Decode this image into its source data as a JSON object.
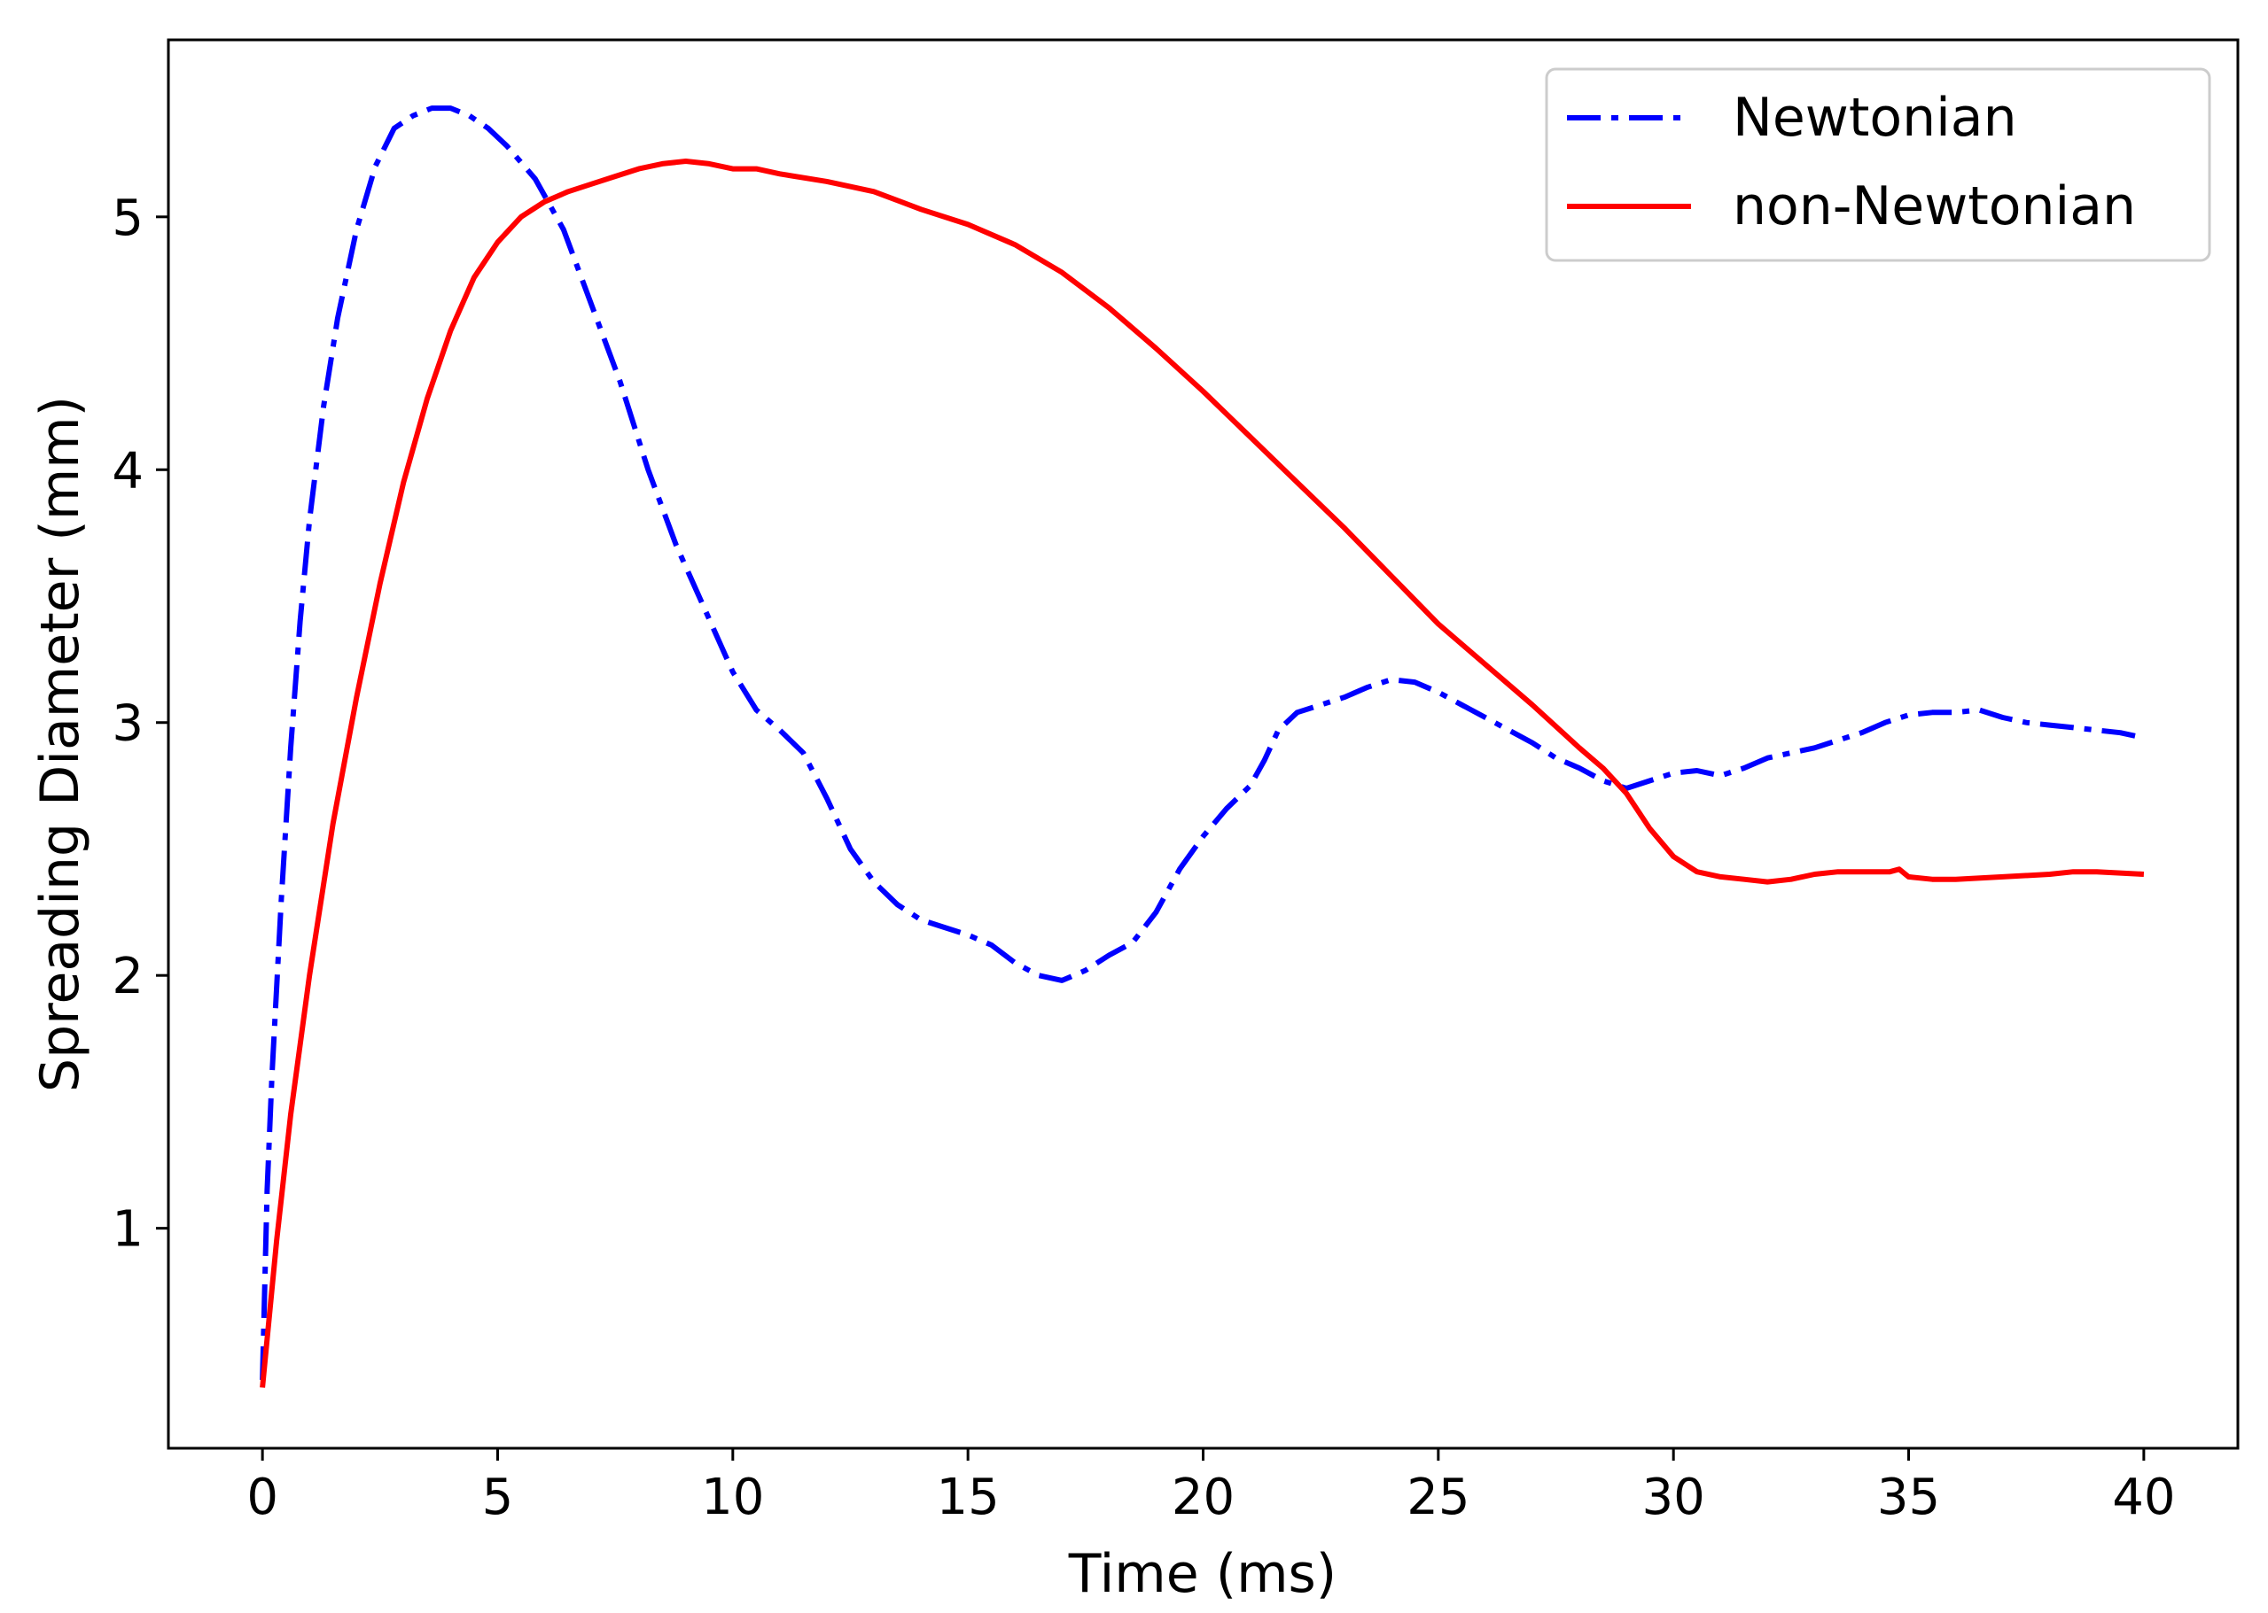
{
  "chart_data": {
    "type": "line",
    "title": "",
    "xlabel": "Time (ms)",
    "ylabel": "Spreading Diameter (mm)",
    "xlim": [
      -2,
      42
    ],
    "ylim": [
      0.13,
      5.7
    ],
    "xticks": [
      0,
      5,
      10,
      15,
      20,
      25,
      30,
      35,
      40
    ],
    "yticks": [
      1,
      2,
      3,
      4,
      5
    ],
    "grid": false,
    "legend_position": "top-right",
    "series": [
      {
        "name": "Newtonian",
        "color": "#0000ff",
        "style": "dash-dot",
        "x": [
          0,
          0.1,
          0.2,
          0.4,
          0.6,
          0.8,
          1.0,
          1.3,
          1.6,
          2.0,
          2.4,
          2.8,
          3.2,
          3.6,
          4.0,
          4.4,
          4.8,
          5.2,
          5.8,
          6.4,
          7.0,
          7.6,
          8.2,
          8.8,
          9.4,
          10.0,
          10.5,
          11.0,
          11.5,
          12.0,
          12.5,
          13.0,
          13.5,
          14.0,
          14.5,
          15.0,
          15.5,
          16.0,
          16.5,
          17.0,
          17.5,
          18.0,
          18.5,
          19.0,
          19.5,
          20.0,
          20.5,
          21.0,
          21.3,
          21.6,
          22.0,
          22.5,
          23.0,
          23.5,
          24.0,
          24.5,
          25.0,
          25.5,
          26.0,
          26.5,
          27.0,
          27.5,
          28.0,
          28.5,
          29.0,
          29.5,
          30.0,
          30.5,
          31.0,
          31.5,
          32.0,
          32.5,
          33.0,
          33.5,
          34.0,
          34.5,
          35.0,
          35.5,
          36.0,
          36.5,
          37.0,
          37.5,
          38.0,
          38.5,
          39.0,
          39.5,
          40.0
        ],
        "y": [
          0.4,
          1.15,
          1.6,
          2.3,
          2.9,
          3.4,
          3.8,
          4.25,
          4.6,
          4.95,
          5.2,
          5.35,
          5.4,
          5.43,
          5.43,
          5.4,
          5.35,
          5.28,
          5.15,
          4.95,
          4.65,
          4.35,
          4.0,
          3.7,
          3.45,
          3.2,
          3.05,
          2.97,
          2.88,
          2.7,
          2.5,
          2.37,
          2.28,
          2.22,
          2.19,
          2.16,
          2.12,
          2.05,
          2.0,
          1.98,
          2.02,
          2.08,
          2.13,
          2.25,
          2.42,
          2.55,
          2.66,
          2.75,
          2.85,
          2.97,
          3.04,
          3.07,
          3.1,
          3.14,
          3.17,
          3.16,
          3.12,
          3.07,
          3.02,
          2.97,
          2.92,
          2.86,
          2.82,
          2.77,
          2.74,
          2.77,
          2.8,
          2.81,
          2.79,
          2.82,
          2.86,
          2.88,
          2.9,
          2.93,
          2.96,
          3.0,
          3.03,
          3.04,
          3.04,
          3.05,
          3.02,
          3.0,
          2.99,
          2.98,
          2.97,
          2.96,
          2.94
        ]
      },
      {
        "name": "non-Newtonian",
        "color": "#ff0000",
        "style": "solid",
        "x": [
          0,
          0.3,
          0.6,
          1.0,
          1.5,
          2.0,
          2.5,
          3.0,
          3.5,
          4.0,
          4.5,
          5.0,
          5.5,
          6.0,
          6.5,
          7.0,
          7.5,
          8.0,
          8.5,
          9.0,
          9.5,
          10.0,
          10.5,
          11.0,
          12.0,
          13.0,
          14.0,
          15.0,
          16.0,
          17.0,
          18.0,
          19.0,
          20.0,
          21.0,
          22.0,
          23.0,
          24.0,
          25.0,
          26.0,
          27.0,
          28.0,
          28.5,
          29.0,
          29.5,
          30.0,
          30.5,
          31.0,
          31.5,
          32.0,
          32.5,
          33.0,
          33.5,
          34.0,
          34.6,
          34.8,
          35.0,
          35.5,
          36.0,
          37.0,
          38.0,
          38.5,
          39.0,
          40.0
        ],
        "y": [
          0.37,
          0.95,
          1.45,
          2.0,
          2.6,
          3.1,
          3.55,
          3.95,
          4.28,
          4.55,
          4.76,
          4.9,
          5.0,
          5.06,
          5.1,
          5.13,
          5.16,
          5.19,
          5.21,
          5.22,
          5.21,
          5.19,
          5.19,
          5.17,
          5.14,
          5.1,
          5.03,
          4.97,
          4.89,
          4.78,
          4.64,
          4.48,
          4.31,
          4.13,
          3.95,
          3.77,
          3.58,
          3.39,
          3.23,
          3.07,
          2.9,
          2.82,
          2.72,
          2.58,
          2.47,
          2.41,
          2.39,
          2.38,
          2.37,
          2.38,
          2.4,
          2.41,
          2.41,
          2.41,
          2.42,
          2.39,
          2.38,
          2.38,
          2.39,
          2.4,
          2.41,
          2.41,
          2.4
        ]
      }
    ]
  }
}
